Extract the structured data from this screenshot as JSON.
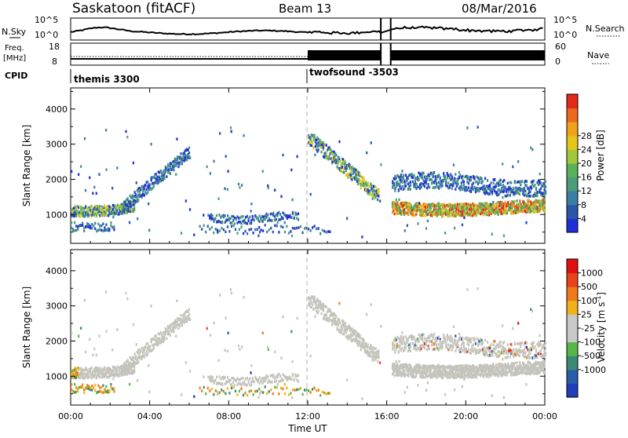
{
  "header": {
    "station": "Saskatoon (fitACF)",
    "beam": "Beam 13",
    "date": "08/Mar/2016"
  },
  "top_panels": {
    "nsky_label": "N.Sky",
    "nsky_ticks": [
      "10^5",
      "10^0"
    ],
    "nsearch_label": "N.Search",
    "nsearch_ticks": [
      "10^5",
      "10^0"
    ],
    "freq_label": "Freq.",
    "freq_unit": "[MHz]",
    "freq_ticks": [
      "18",
      "8"
    ],
    "nave_label": "Nave",
    "nave_ticks": [
      "60",
      "0"
    ],
    "cpid_label": "CPID",
    "cpid_modes": [
      {
        "name": "themis 3300",
        "start_hour": 0,
        "end_hour": 12
      },
      {
        "name": "twofsound -3503",
        "start_hour": 12,
        "end_hour": 24
      }
    ]
  },
  "chart_data": [
    {
      "type": "heatmap",
      "quantity": "Power",
      "ylabel": "Slant Range [km]",
      "xlabel": "",
      "ylim": [
        180,
        4600
      ],
      "yticks": [
        "1000",
        "2000",
        "3000",
        "4000"
      ],
      "xlim": [
        0,
        24
      ],
      "colorbar": {
        "label": "Power [dB]",
        "ticks": [
          "4",
          "8",
          "12",
          "16",
          "20",
          "24",
          "28"
        ],
        "colors": [
          "#1f2fd8",
          "#2a56a8",
          "#3b7ea3",
          "#4c9c7a",
          "#58b058",
          "#9fc93a",
          "#e6c51a",
          "#f0a21a",
          "#ec6a1c",
          "#e12a1a"
        ]
      },
      "data_gaps_hours": [
        [
          15.7,
          16.2
        ]
      ],
      "features": [
        {
          "hours": [
            0,
            3.2
          ],
          "range_km": [
            950,
            1250
          ],
          "level": "medium"
        },
        {
          "hours": [
            2.6,
            6.0
          ],
          "range_km": [
            1200,
            2800
          ],
          "level": "weak"
        },
        {
          "hours": [
            7.0,
            11.5
          ],
          "range_km": [
            750,
            1050
          ],
          "level": "weak"
        },
        {
          "hours": [
            12.0,
            15.6
          ],
          "range_km": [
            1300,
            3300
          ],
          "level": "medium"
        },
        {
          "hours": [
            16.2,
            24
          ],
          "range_km": [
            950,
            1350
          ],
          "level": "strong"
        },
        {
          "hours": [
            16.2,
            24
          ],
          "range_km": [
            1500,
            2200
          ],
          "level": "weak"
        }
      ]
    },
    {
      "type": "heatmap",
      "quantity": "Velocity",
      "ylabel": "Slant Range [km]",
      "xlabel": "Time UT",
      "ylim": [
        180,
        4600
      ],
      "yticks": [
        "1000",
        "2000",
        "3000",
        "4000"
      ],
      "xlim": [
        0,
        24
      ],
      "xticks": [
        "00:00",
        "04:00",
        "08:00",
        "12:00",
        "16:00",
        "20:00",
        "00:00"
      ],
      "colorbar": {
        "label": "Velocity [m s",
        "label_exp": "-1",
        "label_end": "]",
        "ticks": [
          "1000",
          "500",
          "100",
          "25",
          "-25",
          "-100",
          "-500",
          "-1000"
        ],
        "colors": [
          "#1f3fb8",
          "#2a5ea8",
          "#3c8a74",
          "#56b848",
          "#c8c8c8",
          "#c8c8c8",
          "#f0b21a",
          "#ee7a1a",
          "#e8441a",
          "#e01010"
        ]
      }
    }
  ],
  "styles": {
    "ground_scatter": "#c4c4bc",
    "marker_line": "#b0b0b0"
  }
}
